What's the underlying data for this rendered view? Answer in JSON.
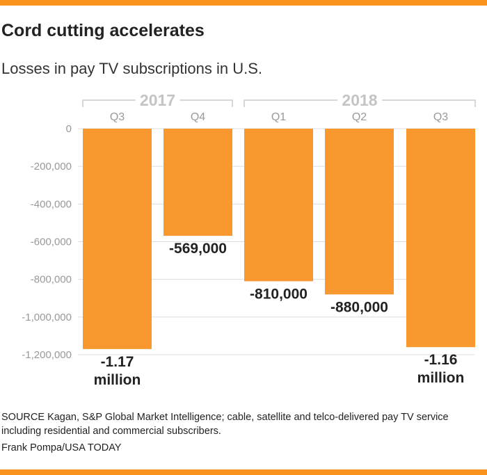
{
  "title": "Cord cutting accelerates",
  "subtitle": "Losses in pay TV subscriptions in U.S.",
  "source": "SOURCE Kagan, S&P Global Market Intelligence; cable, satellite and telco-delivered pay TV service including residential and commercial subscribers.",
  "credit": "Frank Pompa/USA TODAY",
  "colors": {
    "accent": "#f7931e",
    "bar": "#f8982f"
  },
  "chart_data": {
    "type": "bar",
    "year_groups": [
      {
        "label": "2017",
        "categories": [
          "Q3",
          "Q4"
        ]
      },
      {
        "label": "2018",
        "categories": [
          "Q1",
          "Q2",
          "Q3"
        ]
      }
    ],
    "categories": [
      "Q3",
      "Q4",
      "Q1",
      "Q2",
      "Q3"
    ],
    "values": [
      -1170000,
      -569000,
      -810000,
      -880000,
      -1160000
    ],
    "value_labels": [
      [
        "-1.17",
        "million"
      ],
      [
        "-569,000"
      ],
      [
        "-810,000"
      ],
      [
        "-880,000"
      ],
      [
        "-1.16",
        "million"
      ]
    ],
    "yticks": [
      "0",
      "-200,000",
      "-400,000",
      "-600,000",
      "-800,000",
      "-1,000,000",
      "-1,200,000"
    ],
    "ytick_values": [
      0,
      -200000,
      -400000,
      -600000,
      -800000,
      -1000000,
      -1200000
    ],
    "ylim": [
      -1200000,
      0
    ],
    "grid": true
  }
}
